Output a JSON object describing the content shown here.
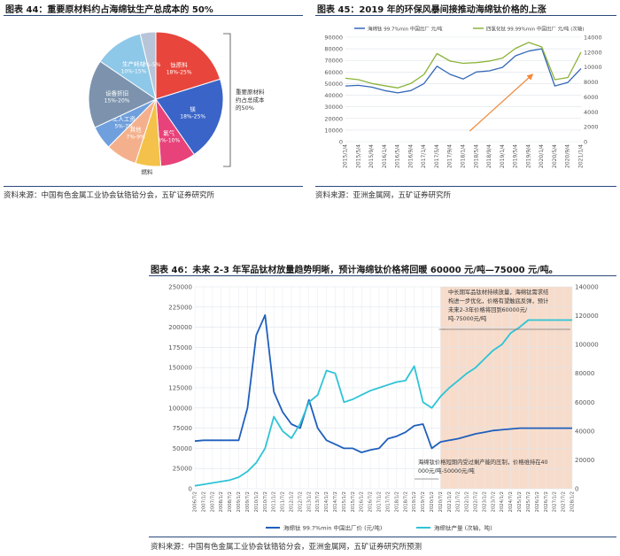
{
  "figures": {
    "fig44": {
      "title": "图表 44：重要原材料约占海绵钛生产总成本的 50%",
      "source": "资料来源：中国有色金属工业协会钛锆铪分会，五矿证券研究所"
    },
    "fig45": {
      "title": "图表 45：2019 年的环保风暴间接推动海绵钛价格的上涨",
      "source": "资料来源：亚洲金属网，五矿证券研究所"
    },
    "fig46": {
      "title": "图表 46：未来 2-3 年军品钛材放量趋势明晰，预计海绵钛价格将回暖 60000 元/吨—75000 元/吨。",
      "source": "资料来源：中国有色金属工业协会钛锆铪分会，亚洲金属网，五矿证券研究所预测"
    }
  },
  "chart_data": [
    {
      "id": "fig44",
      "type": "pie",
      "slices": [
        {
          "label": "钛原料",
          "range": "18%-25%",
          "value": 21.5,
          "color": "#e8453c"
        },
        {
          "label": "镁",
          "range": "18%-25%",
          "value": 21.5,
          "color": "#3a64c8"
        },
        {
          "label": "氯气",
          "range": "8%-10%",
          "value": 9,
          "color": "#e8427a"
        },
        {
          "label": "燃料",
          "range": "",
          "value": 6.5,
          "color": "#f4c24a"
        },
        {
          "label": "其他",
          "range": "7%-9%",
          "value": 8,
          "color": "#f4b08c"
        },
        {
          "label": "工人工资",
          "range": "5%-7%",
          "value": 6,
          "color": "#6f9fdc"
        },
        {
          "label": "设备折旧",
          "range": "15%-20%",
          "value": 17.5,
          "color": "#7d93ad"
        },
        {
          "label": "生产耗材",
          "range": "10%-15%",
          "value": 12.5,
          "color": "#8ec8e8"
        },
        {
          "label": "",
          "range": "3%-5%",
          "value": 4,
          "color": "#b8c4d8"
        }
      ],
      "bracket_label": "重要原材料约占总成本的50%"
    },
    {
      "id": "fig45",
      "type": "line",
      "legend": [
        "海绵钛 99.7%min 中国出厂 元/吨",
        "四氯化钛 99.99%min 中国出厂 元/吨 (次轴)"
      ],
      "x_ticks": [
        "2015/1/4",
        "2015/5/4",
        "2015/9/4",
        "2016/1/4",
        "2016/5/4",
        "2016/9/4",
        "2017/1/4",
        "2017/5/4",
        "2017/9/4",
        "2018/1/4",
        "2018/5/4",
        "2018/9/4",
        "2019/1/4",
        "2019/5/4",
        "2019/9/4",
        "2020/1/4",
        "2020/5/4",
        "2020/9/4",
        "2021/1/4"
      ],
      "y_left_ticks": [
        "0",
        "10000",
        "20000",
        "30000",
        "40000",
        "50000",
        "60000",
        "70000",
        "80000",
        "90000"
      ],
      "y_right_ticks": [
        "0",
        "2000",
        "4000",
        "6000",
        "8000",
        "10000",
        "12000",
        "14000"
      ],
      "ylim_left": [
        0,
        90000
      ],
      "ylim_right": [
        0,
        14000
      ],
      "series": [
        {
          "name": "海绵钛 99.7%min 中国出厂 元/吨",
          "axis": "left",
          "color": "#3467b8",
          "values": [
            48000,
            48500,
            47000,
            44000,
            42000,
            44000,
            50000,
            65000,
            58000,
            54000,
            60000,
            61000,
            64000,
            74000,
            78000,
            80000,
            48000,
            51000,
            63000
          ]
        },
        {
          "name": "四氯化钛 99.99%min 中国出厂 元/吨 (次轴)",
          "axis": "right",
          "color": "#8cb33a",
          "values": [
            8500,
            8300,
            7800,
            7500,
            7200,
            7800,
            9000,
            11800,
            10800,
            10500,
            10600,
            10800,
            11200,
            12500,
            13300,
            12700,
            8300,
            8600,
            12000
          ]
        }
      ]
    },
    {
      "id": "fig46",
      "type": "line",
      "x_ticks": [
        "2006/7/2",
        "2007/1/2",
        "2007/7/2",
        "2008/1/2",
        "2008/7/2",
        "2009/1/2",
        "2009/7/2",
        "2010/1/2",
        "2010/7/2",
        "2011/1/2",
        "2011/7/2",
        "2012/1/2",
        "2012/7/2",
        "2013/1/2",
        "2013/7/2",
        "2014/1/2",
        "2014/7/2",
        "2015/1/2",
        "2015/7/2",
        "2016/1/2",
        "2016/7/2",
        "2017/1/2",
        "2017/7/2",
        "2018/1/2",
        "2018/7/2",
        "2019/1/2",
        "2019/7/2",
        "2020/1/2",
        "2020/7/2",
        "2021/1/2",
        "2021/7/2",
        "2022/1/2",
        "2022/7/2",
        "2023/1/2",
        "2023/7/2",
        "2024/1/2",
        "2024/7/2",
        "2025/1/2",
        "2025/7/2",
        "2026/1/2",
        "2026/7/2",
        "2027/1/2",
        "2027/7/2",
        "2028/1/2"
      ],
      "y_left_ticks": [
        "0",
        "25000",
        "50000",
        "75000",
        "100000",
        "125000",
        "150000",
        "175000",
        "200000",
        "225000",
        "250000"
      ],
      "y_right_ticks": [
        "0",
        "20000",
        "40000",
        "60000",
        "80000",
        "100000",
        "120000",
        "140000"
      ],
      "ylim_left": [
        0,
        250000
      ],
      "ylim_right": [
        0,
        140000
      ],
      "series": [
        {
          "name": "海绵钛 99.7%min 中国出厂价 (元/吨)",
          "axis": "left",
          "color": "#1f5fbd",
          "values": [
            59000,
            60000,
            60000,
            60000,
            60000,
            60000,
            100000,
            190000,
            215000,
            120000,
            95000,
            80000,
            75000,
            110000,
            75000,
            60000,
            55000,
            50000,
            50000,
            45000,
            48000,
            50000,
            62000,
            65000,
            70000,
            78000,
            80000,
            50000,
            58000,
            60000,
            62000,
            65000,
            68000,
            70000,
            72000,
            73000,
            74000,
            75000,
            75000,
            75000,
            75000,
            75000,
            75000,
            75000
          ]
        },
        {
          "name": "海绵钛产量 (次轴，吨)",
          "axis": "right",
          "color": "#2ec4d6",
          "values": [
            2000,
            3000,
            4000,
            5000,
            6000,
            8000,
            12000,
            18000,
            28000,
            50000,
            40000,
            35000,
            45000,
            60000,
            65000,
            82000,
            80000,
            60000,
            62000,
            65000,
            68000,
            70000,
            72000,
            74000,
            75000,
            85000,
            60000,
            56000,
            64000,
            70000,
            75000,
            80000,
            84000,
            90000,
            96000,
            100000,
            108000,
            112000,
            117000,
            117000,
            117000,
            117000,
            117000,
            117000
          ]
        }
      ],
      "forecast_start": "2020/7/2",
      "annotations": [
        "中长期军品钛材持续放量，海绵钛需求结构进一步优化，价格有望触底反弹，预计未来2-3年价格将回到60000元/吨-75000元/吨",
        "海绵钛价格短期内受过剩产能的压制，价格维持在40000元/吨-50000元/吨"
      ]
    }
  ]
}
